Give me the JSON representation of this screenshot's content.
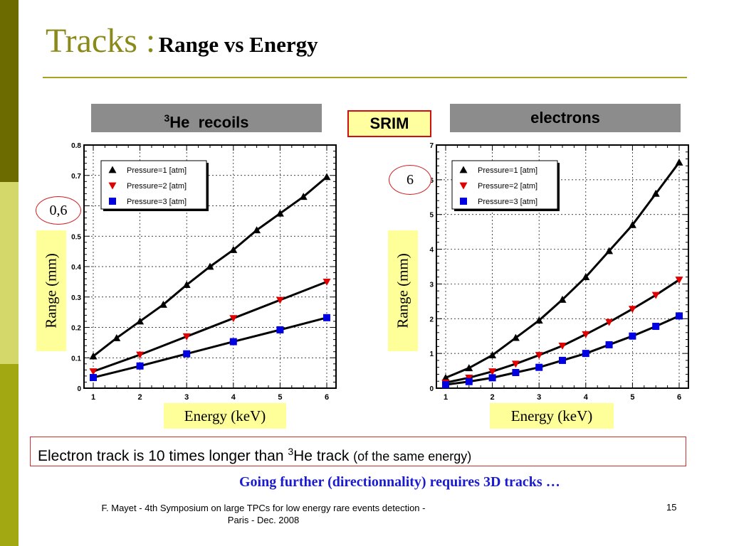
{
  "title": {
    "main": "Tracks :",
    "sub": "Range vs Energy"
  },
  "headers": {
    "left": {
      "sup": "3",
      "text": "He  recoils"
    },
    "right": "electrons",
    "center": "SRIM"
  },
  "annotations": {
    "left_ellipse": "0,6",
    "right_ellipse": "6"
  },
  "axis_labels": {
    "y": "Range (mm)",
    "x": "Energy (keV)"
  },
  "conclusion": {
    "prefix": "Electron track is 10 times longer than ",
    "sup": "3",
    "element": "He track ",
    "paren": "(of the same energy)"
  },
  "further": "Going further (directionnality) requires 3D tracks …",
  "footer": {
    "line1": "F. Mayet  - 4th Symposium on large TPCs  for low energy rare events detection -",
    "line2": "Paris - Dec. 2008",
    "page": "15"
  },
  "colors": {
    "series1": "#000000",
    "series2": "#e00000",
    "series3": "#0000e0",
    "grid": "#000000"
  },
  "chart_data": [
    {
      "type": "line",
      "title": "3He  recoils",
      "xlabel": "Energy (keV)",
      "ylabel": "Range (mm)",
      "xlim": [
        1,
        6
      ],
      "ylim": [
        0,
        0.8
      ],
      "xticks": [
        1,
        2,
        3,
        4,
        5,
        6
      ],
      "yticks": [
        0,
        0.1,
        0.2,
        0.3,
        0.4,
        0.5,
        0.6,
        0.7,
        0.8
      ],
      "ytick_labels": [
        "0",
        "0.1",
        "0.2",
        "0.3",
        "0.4",
        "0.5",
        "",
        "0.7",
        "0.8"
      ],
      "grid": true,
      "legend": "top-left",
      "series": [
        {
          "name": "Pressure=1 [atm]",
          "marker": "triangle-up",
          "x": [
            1,
            1.5,
            2,
            2.5,
            3,
            3.5,
            4,
            4.5,
            5,
            5.5,
            6
          ],
          "y": [
            0.105,
            0.165,
            0.22,
            0.275,
            0.34,
            0.4,
            0.455,
            0.52,
            0.575,
            0.63,
            0.695
          ]
        },
        {
          "name": "Pressure=2 [atm]",
          "marker": "triangle-down",
          "x": [
            1,
            2,
            3,
            4,
            5,
            6
          ],
          "y": [
            0.055,
            0.11,
            0.17,
            0.23,
            0.29,
            0.35
          ]
        },
        {
          "name": "Pressure=3 [atm]",
          "marker": "square",
          "x": [
            1,
            2,
            3,
            4,
            5,
            6
          ],
          "y": [
            0.035,
            0.073,
            0.113,
            0.153,
            0.192,
            0.232
          ]
        }
      ]
    },
    {
      "type": "line",
      "title": "electrons",
      "xlabel": "Energy (keV)",
      "ylabel": "Range (mm)",
      "xlim": [
        1,
        6
      ],
      "ylim": [
        0,
        7
      ],
      "xticks": [
        1,
        2,
        3,
        4,
        5,
        6
      ],
      "yticks": [
        0,
        1,
        2,
        3,
        4,
        5,
        6,
        7
      ],
      "ytick_labels": [
        "0",
        "1",
        "2",
        "3",
        "4",
        "5",
        "6",
        "7"
      ],
      "grid": true,
      "legend": "top-left",
      "series": [
        {
          "name": "Pressure=1 [atm]",
          "marker": "triangle-up",
          "x": [
            1,
            1.5,
            2,
            2.5,
            3,
            3.5,
            4,
            4.5,
            5,
            5.5,
            6
          ],
          "y": [
            0.3,
            0.58,
            0.95,
            1.45,
            1.95,
            2.55,
            3.2,
            3.95,
            4.7,
            5.6,
            6.5
          ]
        },
        {
          "name": "Pressure=2 [atm]",
          "marker": "triangle-down",
          "x": [
            1,
            1.5,
            2,
            2.5,
            3,
            3.5,
            4,
            4.5,
            5,
            5.5,
            6
          ],
          "y": [
            0.16,
            0.3,
            0.48,
            0.7,
            0.95,
            1.22,
            1.55,
            1.9,
            2.28,
            2.68,
            3.12
          ]
        },
        {
          "name": "Pressure=3 [atm]",
          "marker": "square",
          "x": [
            1,
            1.5,
            2,
            2.5,
            3,
            3.5,
            4,
            4.5,
            5,
            5.5,
            6
          ],
          "y": [
            0.1,
            0.19,
            0.3,
            0.45,
            0.6,
            0.8,
            1.0,
            1.25,
            1.5,
            1.78,
            2.08
          ]
        }
      ]
    }
  ]
}
